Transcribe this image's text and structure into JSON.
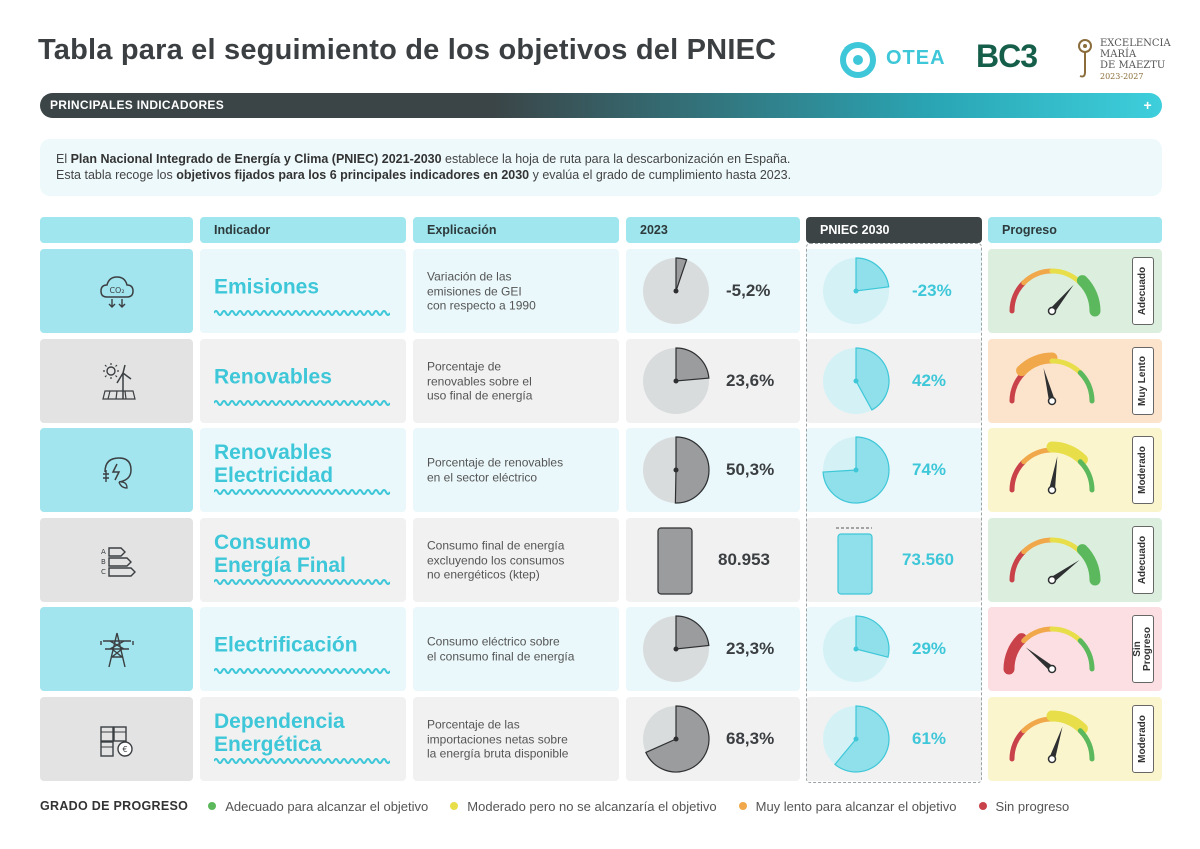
{
  "title": "Tabla para el seguimiento de los objetivos del PNIEC",
  "logos": {
    "otea": "OTEA",
    "bc3": "BC3",
    "maeztu_line1": "EXCELENCIA",
    "maeztu_line2": "MARÍA",
    "maeztu_line3": "DE MAEZTU",
    "maeztu_years": "2023-2027"
  },
  "section": {
    "label": "PRINCIPALES INDICADORES",
    "toggle": "+"
  },
  "intro": {
    "l1a": "El ",
    "l1b": "Plan Nacional Integrado de Energía y Clima (PNIEC) 2021-2030",
    "l1c": " establece la hoja de ruta para la descarbonización en España.",
    "l2a": "Esta tabla recoge los ",
    "l2b": "objetivos fijados para los 6 principales indicadores en 2030",
    "l2c": " y evalúa el grado de cumplimiento hasta 2023."
  },
  "headers": {
    "indicador": "Indicador",
    "explicacion": "Explicación",
    "y2023": "2023",
    "pniec": "PNIEC 2030",
    "progreso": "Progreso"
  },
  "colors": {
    "accent": "#3ec7d8",
    "dark": "#3d4446",
    "green": "#5cb85c",
    "yellow": "#e8de4a",
    "orange": "#f0a84a",
    "red": "#c9424a"
  },
  "chart_data": {
    "type": "table",
    "rows": [
      {
        "name_l1": "Emisiones",
        "name_l2": "",
        "exp": [
          "Variación de las",
          "emisiones de GEI",
          "con respecto a 1990"
        ],
        "v2023": -5.2,
        "label2023": "-5,2%",
        "vpniec": -23,
        "labelPniec": "-23%",
        "kind": "pie",
        "status": "Adecuado",
        "status_l1": "Adecuado",
        "status_l2": "",
        "level": "green",
        "needle": 0.72,
        "icon": "co2-cloud-icon",
        "style": "cyan"
      },
      {
        "name_l1": "Renovables",
        "name_l2": "",
        "exp": [
          "Porcentaje de",
          "renovables sobre el",
          "uso final de energía"
        ],
        "v2023": 23.6,
        "label2023": "23,6%",
        "vpniec": 42,
        "labelPniec": "42%",
        "kind": "pie",
        "status": "Muy Lento",
        "status_l1": "Muy Lento",
        "status_l2": "",
        "level": "orange",
        "needle": 0.42,
        "icon": "wind-solar-icon",
        "style": "gray"
      },
      {
        "name_l1": "Renovables",
        "name_l2": "Electricidad",
        "exp": [
          "Porcentaje de renovables",
          "en el sector eléctrico"
        ],
        "v2023": 50.3,
        "label2023": "50,3%",
        "vpniec": 74,
        "labelPniec": "74%",
        "kind": "pie",
        "status": "Moderado",
        "status_l1": "Moderado",
        "status_l2": "",
        "level": "yellow",
        "needle": 0.55,
        "icon": "green-electricity-icon",
        "style": "cyan"
      },
      {
        "name_l1": "Consumo",
        "name_l2": "Energía Final",
        "exp": [
          "Consumo final de energía",
          "excluyendo los consumos",
          "no energéticos (ktep)"
        ],
        "v2023": 80953,
        "label2023": "80.953",
        "vpniec": 73560,
        "labelPniec": "73.560",
        "kind": "bar",
        "status": "Adecuado",
        "status_l1": "Adecuado",
        "status_l2": "",
        "level": "green",
        "needle": 0.8,
        "icon": "energy-rating-icon",
        "style": "gray"
      },
      {
        "name_l1": "Electrificación",
        "name_l2": "",
        "exp": [
          "Consumo eléctrico sobre",
          "el consumo final de energía"
        ],
        "v2023": 23.3,
        "label2023": "23,3%",
        "vpniec": 29,
        "labelPniec": "29%",
        "kind": "pie",
        "status": "Sin Progreso",
        "status_l1": "Sin",
        "status_l2": "Progreso",
        "level": "red",
        "needle": 0.22,
        "icon": "power-tower-icon",
        "style": "cyan"
      },
      {
        "name_l1": "Dependencia",
        "name_l2": "Energética",
        "exp": [
          "Porcentaje de las",
          "importaciones netas sobre",
          "la energía bruta disponible"
        ],
        "v2023": 68.3,
        "label2023": "68,3%",
        "vpniec": 61,
        "labelPniec": "61%",
        "kind": "pie",
        "status": "Moderado",
        "status_l1": "Moderado",
        "status_l2": "",
        "level": "yellow",
        "needle": 0.6,
        "icon": "oil-barrels-euro-icon",
        "style": "gray"
      }
    ]
  },
  "legend": {
    "title": "GRADO DE PROGRESO",
    "items": [
      {
        "label": "Adecuado para alcanzar el objetivo",
        "color": "#5cb85c"
      },
      {
        "label": "Moderado pero no se alcanzaría el objetivo",
        "color": "#e8de4a"
      },
      {
        "label": "Muy lento para alcanzar el objetivo",
        "color": "#f0a84a"
      },
      {
        "label": "Sin progreso",
        "color": "#c9424a"
      }
    ]
  }
}
